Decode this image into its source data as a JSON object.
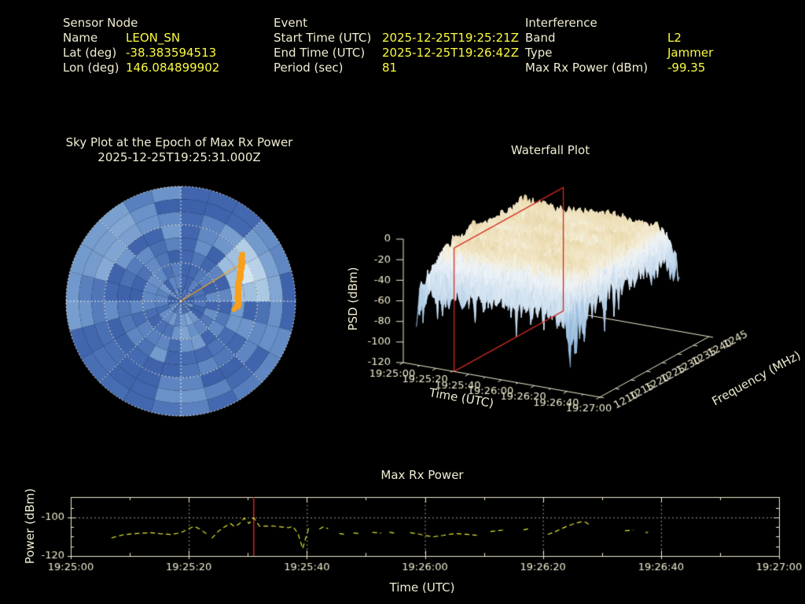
{
  "header": {
    "sections": [
      {
        "title": "Sensor Node",
        "rows": [
          [
            "Name",
            "LEON_SN"
          ],
          [
            "Lat (deg)",
            "-38.383594513"
          ],
          [
            "Lon (deg)",
            "146.084899902"
          ]
        ]
      },
      {
        "title": "Event",
        "rows": [
          [
            "Start Time (UTC)",
            "2025-12-25T19:25:21Z"
          ],
          [
            "End Time (UTC)",
            "2025-12-25T19:26:42Z"
          ],
          [
            "Period (sec)",
            "81"
          ]
        ]
      },
      {
        "title": "Interference",
        "rows": [
          [
            "Band",
            "L2"
          ],
          [
            "Type",
            "Jammer"
          ],
          [
            "Max Rx Power (dBm)",
            "-99.35"
          ]
        ]
      }
    ]
  },
  "colors": {
    "text": "#f1edd2",
    "value": "#fbfb40",
    "axis": "#f0ebcf",
    "grid": "#999999",
    "epoch_red": "#d42a20",
    "trace_yellow": "#e8e832",
    "track_orange": "#f9a01b"
  },
  "chart_data": [
    {
      "id": "sky",
      "type": "heatmap",
      "projection": "polar",
      "title": "Sky Plot at the Epoch of Max Rx Power",
      "subtitle": "2025-12-25T19:25:31.000Z",
      "elevation_rings_deg": [
        30,
        60
      ],
      "spoke_step_deg": 45,
      "az_bins": 24,
      "el_bins": 9,
      "palette_stops": [
        [
          0,
          "#2e4e99"
        ],
        [
          0.3,
          "#4469b0"
        ],
        [
          0.55,
          "#6c94ca"
        ],
        [
          0.75,
          "#9dbede"
        ],
        [
          0.9,
          "#c3d8ec"
        ],
        [
          1,
          "#dcebf6"
        ]
      ],
      "bright_zones": [
        {
          "az0": 40,
          "az1": 95,
          "el0": 15,
          "el1": 55,
          "v": 0.58
        },
        {
          "az0": 48,
          "az1": 85,
          "el0": 24,
          "el1": 46,
          "v": 0.8
        },
        {
          "az0": 56,
          "az1": 72,
          "el0": 26,
          "el1": 40,
          "v": 0.92
        },
        {
          "az0": 285,
          "az1": 327,
          "el0": 5,
          "el1": 33,
          "v": 0.62
        },
        {
          "az0": 150,
          "az1": 185,
          "el0": 52,
          "el1": 78,
          "v": 0.58
        },
        {
          "az0": 172,
          "az1": 208,
          "el0": 8,
          "el1": 30,
          "v": 0.52
        },
        {
          "az0": 0,
          "az1": 42,
          "el0": 0,
          "el1": 22,
          "v": 0.26
        },
        {
          "az0": 198,
          "az1": 252,
          "el0": 0,
          "el1": 28,
          "v": 0.3
        },
        {
          "az0": 118,
          "az1": 150,
          "el0": 30,
          "el1": 55,
          "v": 0.33
        }
      ],
      "track_az_el": [
        [
          53,
          30
        ],
        [
          55,
          31.5
        ],
        [
          57,
          33
        ],
        [
          59,
          34.5
        ],
        [
          61,
          36
        ],
        [
          63.5,
          37.5
        ],
        [
          66,
          39
        ],
        [
          69,
          40.5
        ],
        [
          72,
          41.8
        ],
        [
          75,
          43
        ],
        [
          78,
          44
        ],
        [
          81,
          44.6
        ],
        [
          84,
          45
        ],
        [
          87,
          45.2
        ],
        [
          90,
          45
        ],
        [
          93,
          45.2
        ],
        [
          96,
          45.5
        ]
      ],
      "pointer_az_el": [
        58,
        37
      ]
    },
    {
      "id": "waterfall",
      "type": "surface",
      "title": "Waterfall Plot",
      "xlabel": "Time (UTC)",
      "ylabel": "Frequency (MHz)",
      "zlabel": "PSD (dBm)",
      "time_ticks": [
        "19:25:00",
        "19:25:20",
        "19:25:40",
        "19:26:00",
        "19:26:20",
        "19:26:40",
        "19:27:00"
      ],
      "time_tick_sec": [
        0,
        20,
        40,
        60,
        80,
        100,
        120
      ],
      "freq_ticks": [
        1210,
        1215,
        1220,
        1225,
        1230,
        1235,
        1240,
        1245
      ],
      "psd_ticks": [
        0,
        -20,
        -40,
        -60,
        -80,
        -100,
        -120
      ],
      "time_range_sec": [
        0,
        120
      ],
      "freq_range_mhz": [
        1210,
        1245
      ],
      "psd_range_dbm": [
        -120,
        0
      ],
      "event_span_sec": [
        8,
        102
      ],
      "plateau_dbm": -14,
      "edge_floor_dbm": -95,
      "epoch_sec": 31
    },
    {
      "id": "power",
      "type": "line",
      "title": "Max Rx Power",
      "xlabel": "Time (UTC)",
      "ylabel": "Power (dBm)",
      "x_tick_labels": [
        "19:25:00",
        "19:25:20",
        "19:25:40",
        "19:26:00",
        "19:26:20",
        "19:26:40",
        "19:27:00"
      ],
      "x_tick_sec": [
        0,
        20,
        40,
        60,
        80,
        100,
        120
      ],
      "x_minor_step_sec": 10,
      "y_ticks": [
        -100,
        -120
      ],
      "y_minor_ticks": [
        -95,
        -105,
        -110,
        -115
      ],
      "y_lim": [
        -120,
        -89.4
      ],
      "grid_y": [
        -100
      ],
      "epoch_sec": 31,
      "points": [
        [
          6.9,
          -110.6
        ],
        [
          8.9,
          -109.0
        ],
        [
          11.1,
          -108.3
        ],
        [
          13.5,
          -107.9
        ],
        [
          15.1,
          -108.4
        ],
        [
          16.9,
          -108.8
        ],
        [
          18.6,
          -108.0
        ],
        [
          20.0,
          -105.8
        ],
        [
          20.9,
          -104.6
        ],
        [
          21.8,
          -105.9
        ],
        [
          23.0,
          -108.5
        ],
        null,
        [
          23.9,
          -110.8
        ],
        [
          25.1,
          -106.9
        ],
        [
          26.3,
          -104.4
        ],
        [
          27.1,
          -103.2
        ],
        [
          27.7,
          -104.7
        ],
        [
          28.5,
          -103.5
        ],
        [
          29.4,
          -100.3
        ],
        [
          30.2,
          -103.1
        ],
        [
          31.0,
          -100.2
        ],
        [
          32.0,
          -104.6
        ],
        [
          34.2,
          -104.4
        ],
        [
          36.9,
          -105.3
        ],
        [
          37.6,
          -104.6
        ],
        [
          38.5,
          -108.3
        ],
        [
          39.3,
          -116.2
        ],
        [
          39.7,
          -111.7
        ],
        [
          40.3,
          -105.8
        ],
        [
          40.8,
          -104.9
        ],
        null,
        [
          42.1,
          -106.0
        ],
        [
          42.8,
          -104.9
        ],
        [
          43.6,
          -105.8
        ],
        null,
        [
          45.5,
          -108.3
        ],
        [
          46.8,
          -109.0
        ],
        null,
        [
          47.9,
          -108.0
        ],
        [
          49.2,
          -108.5
        ],
        null,
        [
          51.1,
          -107.7
        ],
        [
          52.6,
          -108.1
        ],
        null,
        [
          54.0,
          -107.6
        ],
        [
          55.3,
          -108.4
        ],
        null,
        [
          57.5,
          -107.9
        ],
        [
          58.6,
          -108.3
        ],
        [
          60.0,
          -109.4
        ],
        [
          61.5,
          -110.0
        ],
        [
          63.1,
          -109.3
        ],
        [
          64.4,
          -108.6
        ],
        [
          65.7,
          -108.4
        ],
        [
          67.3,
          -108.8
        ],
        [
          68.8,
          -109.2
        ],
        null,
        [
          71.1,
          -107.3
        ],
        [
          73.3,
          -106.5
        ],
        null,
        [
          76.7,
          -106.5
        ],
        [
          78.0,
          -105.5
        ],
        null,
        [
          80.8,
          -108.8
        ],
        [
          81.7,
          -107.9
        ],
        [
          82.8,
          -106.3
        ],
        [
          84.1,
          -104.5
        ],
        [
          85.3,
          -103.2
        ],
        [
          86.4,
          -102.3
        ],
        [
          87.3,
          -102.5
        ],
        [
          88.1,
          -104.5
        ],
        null,
        [
          93.9,
          -106.9
        ],
        [
          95.3,
          -106.5
        ],
        null,
        [
          97.4,
          -107.8
        ],
        [
          97.8,
          -107.7
        ]
      ]
    }
  ]
}
